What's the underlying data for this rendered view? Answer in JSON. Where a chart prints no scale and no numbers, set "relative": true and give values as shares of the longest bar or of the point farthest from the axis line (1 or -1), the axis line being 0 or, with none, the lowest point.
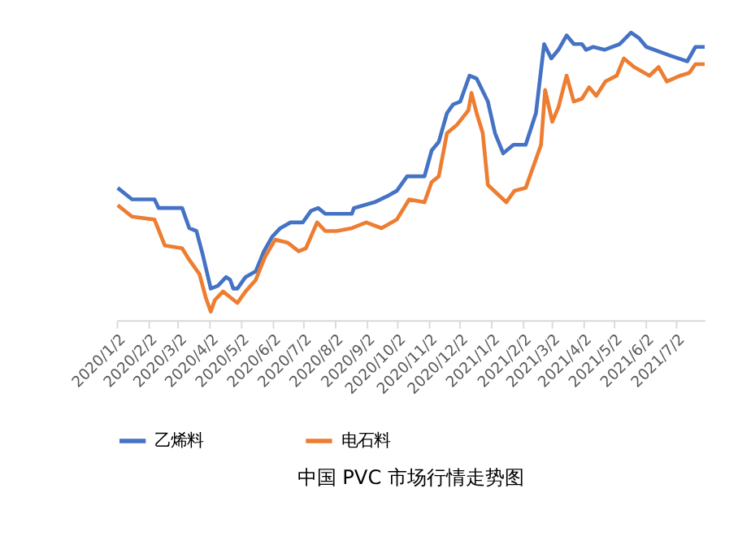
{
  "chart_data": {
    "type": "line",
    "title": "中国 PVC 市场行情走势图",
    "relative": true,
    "legend": "bottom",
    "grid": false,
    "marker": "none",
    "line_style": "solid",
    "xlim": [
      "2020-01-02",
      "2021-07-30"
    ],
    "xticks": [
      {
        "value": "2020-01-02",
        "label": "2020/1/2"
      },
      {
        "value": "2020-02-02",
        "label": "2020/2/2"
      },
      {
        "value": "2020-03-02",
        "label": "2020/3/2"
      },
      {
        "value": "2020-04-02",
        "label": "2020/4/2"
      },
      {
        "value": "2020-05-02",
        "label": "2020/5/2"
      },
      {
        "value": "2020-06-02",
        "label": "2020/6/2"
      },
      {
        "value": "2020-07-02",
        "label": "2020/7/2"
      },
      {
        "value": "2020-08-02",
        "label": "2020/8/2"
      },
      {
        "value": "2020-09-02",
        "label": "2020/9/2"
      },
      {
        "value": "2020-10-02",
        "label": "2020/10/2"
      },
      {
        "value": "2020-11-02",
        "label": "2020/11/2"
      },
      {
        "value": "2020-12-02",
        "label": "2020/12/2"
      },
      {
        "value": "2021-01-02",
        "label": "2021/1/2"
      },
      {
        "value": "2021-02-02",
        "label": "2021/2/2"
      },
      {
        "value": "2021-03-02",
        "label": "2021/3/2"
      },
      {
        "value": "2021-04-02",
        "label": "2021/4/2"
      },
      {
        "value": "2021-05-02",
        "label": "2021/5/2"
      },
      {
        "value": "2021-06-02",
        "label": "2021/6/2"
      },
      {
        "value": "2021-07-02",
        "label": "2021/7/2"
      }
    ],
    "series": [
      {
        "name": "乙烯料",
        "color": "#4472c4",
        "x": [
          "2020-01-03",
          "2020-01-17",
          "2020-02-08",
          "2020-02-12",
          "2020-03-06",
          "2020-03-13",
          "2020-03-20",
          "2020-03-26",
          "2020-04-03",
          "2020-04-10",
          "2020-04-18",
          "2020-04-22",
          "2020-04-25",
          "2020-04-29",
          "2020-05-07",
          "2020-05-17",
          "2020-05-25",
          "2020-06-02",
          "2020-06-10",
          "2020-06-20",
          "2020-07-02",
          "2020-07-10",
          "2020-07-17",
          "2020-07-24",
          "2020-08-19",
          "2020-08-21",
          "2020-09-10",
          "2020-09-22",
          "2020-10-02",
          "2020-10-12",
          "2020-10-29",
          "2020-11-05",
          "2020-11-12",
          "2020-11-20",
          "2020-11-26",
          "2020-12-03",
          "2020-12-12",
          "2020-12-19",
          "2020-12-30",
          "2021-01-06",
          "2021-01-14",
          "2021-01-24",
          "2021-02-05",
          "2021-02-15",
          "2021-02-23",
          "2021-03-02",
          "2021-03-09",
          "2021-03-17",
          "2021-03-24",
          "2021-04-01",
          "2021-04-05",
          "2021-04-12",
          "2021-04-23",
          "2021-05-08",
          "2021-05-19",
          "2021-05-27",
          "2021-06-03",
          "2021-06-26",
          "2021-07-13",
          "2021-07-21",
          "2021-07-30"
        ],
        "values": [
          0.46,
          0.42,
          0.42,
          0.39,
          0.39,
          0.32,
          0.31,
          0.23,
          0.11,
          0.12,
          0.15,
          0.14,
          0.11,
          0.11,
          0.15,
          0.17,
          0.24,
          0.29,
          0.32,
          0.34,
          0.34,
          0.38,
          0.39,
          0.37,
          0.37,
          0.39,
          0.41,
          0.43,
          0.45,
          0.5,
          0.5,
          0.59,
          0.62,
          0.72,
          0.75,
          0.76,
          0.85,
          0.84,
          0.76,
          0.65,
          0.58,
          0.61,
          0.61,
          0.72,
          0.96,
          0.91,
          0.94,
          0.99,
          0.96,
          0.96,
          0.94,
          0.95,
          0.94,
          0.96,
          1,
          0.98,
          0.95,
          0.92,
          0.9,
          0.95,
          0.95
        ]
      },
      {
        "name": "电石料",
        "color": "#ed7d31",
        "x": [
          "2020-01-03",
          "2020-01-17",
          "2020-02-08",
          "2020-02-18",
          "2020-03-06",
          "2020-03-13",
          "2020-03-23",
          "2020-03-29",
          "2020-04-03",
          "2020-04-07",
          "2020-04-15",
          "2020-04-22",
          "2020-04-29",
          "2020-05-07",
          "2020-05-17",
          "2020-05-26",
          "2020-06-05",
          "2020-06-17",
          "2020-06-28",
          "2020-07-05",
          "2020-07-16",
          "2020-07-24",
          "2020-08-04",
          "2020-08-19",
          "2020-09-02",
          "2020-09-17",
          "2020-10-02",
          "2020-10-14",
          "2020-10-29",
          "2020-11-05",
          "2020-11-12",
          "2020-11-20",
          "2020-11-30",
          "2020-12-11",
          "2020-12-14",
          "2020-12-19",
          "2020-12-25",
          "2020-12-30",
          "2021-01-17",
          "2021-01-25",
          "2021-02-05",
          "2021-02-20",
          "2021-02-24",
          "2021-03-03",
          "2021-03-09",
          "2021-03-17",
          "2021-03-24",
          "2021-04-01",
          "2021-04-08",
          "2021-04-15",
          "2021-04-24",
          "2021-05-05",
          "2021-05-12",
          "2021-05-22",
          "2021-06-06",
          "2021-06-15",
          "2021-06-23",
          "2021-07-06",
          "2021-07-15",
          "2021-07-21",
          "2021-07-30"
        ],
        "values": [
          0.4,
          0.36,
          0.35,
          0.26,
          0.25,
          0.21,
          0.16,
          0.08,
          0.03,
          0.07,
          0.1,
          0.08,
          0.06,
          0.1,
          0.14,
          0.22,
          0.28,
          0.27,
          0.24,
          0.25,
          0.34,
          0.31,
          0.31,
          0.32,
          0.34,
          0.32,
          0.35,
          0.42,
          0.41,
          0.48,
          0.5,
          0.65,
          0.68,
          0.73,
          0.79,
          0.72,
          0.65,
          0.47,
          0.41,
          0.45,
          0.46,
          0.61,
          0.8,
          0.69,
          0.74,
          0.85,
          0.76,
          0.77,
          0.81,
          0.78,
          0.83,
          0.85,
          0.91,
          0.88,
          0.85,
          0.88,
          0.83,
          0.85,
          0.86,
          0.89,
          0.89
        ]
      }
    ]
  }
}
